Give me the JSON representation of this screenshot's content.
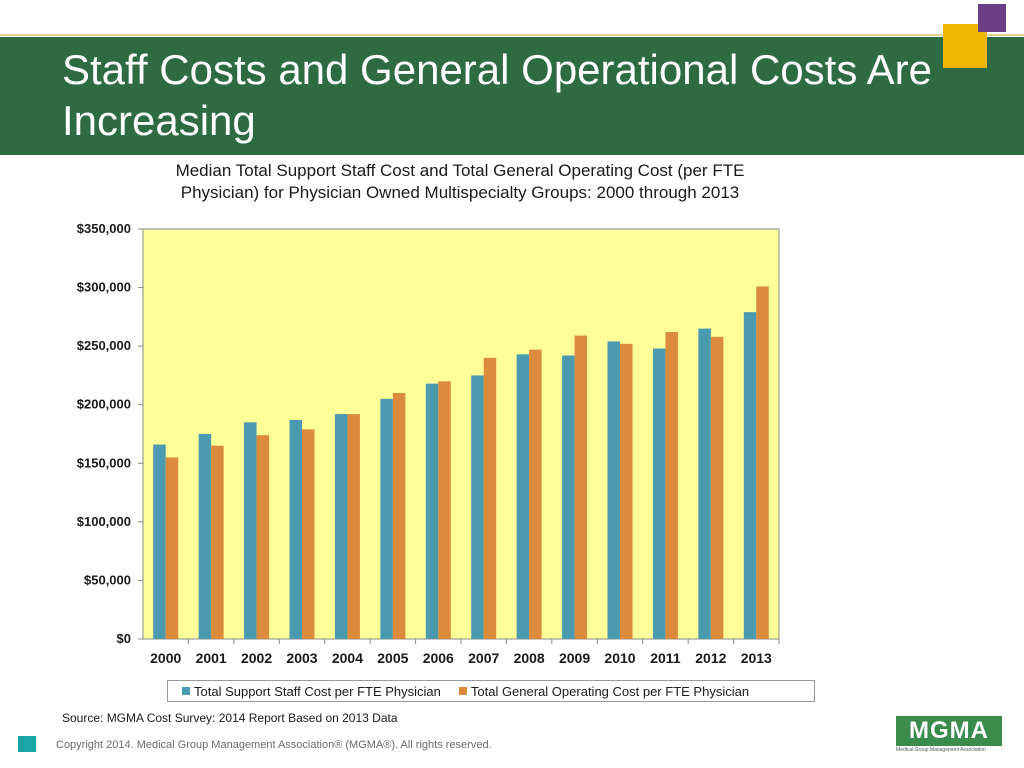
{
  "slide": {
    "title": "Staff Costs and General Operational Costs Are Increasing",
    "source": "Source:  MGMA Cost Survey: 2014 Report Based on 2013 Data",
    "copyright": "Copyright 2014. Medical Group Management Association® (MGMA®). All rights reserved.",
    "logo": {
      "word": "MGMA",
      "subtitle": "Medical Group Management Association"
    },
    "colors": {
      "title_bar": "#2e6b43",
      "accent_yellow": "#f2b705",
      "accent_purple": "#6b3f86",
      "footer_square": "#19a6a6"
    }
  },
  "chart_data": {
    "type": "bar",
    "title_line1": "Median Total Support Staff Cost and Total General Operating Cost (per FTE",
    "title_line2": "Physician) for Physician Owned Multispecialty Groups: 2000 through 2013",
    "categories": [
      "2000",
      "2001",
      "2002",
      "2003",
      "2004",
      "2005",
      "2006",
      "2007",
      "2008",
      "2009",
      "2010",
      "2011",
      "2012",
      "2013"
    ],
    "series": [
      {
        "name": "Total Support Staff Cost per FTE Physician",
        "color": "#4a9bb0",
        "values": [
          166000,
          175000,
          185000,
          187000,
          192000,
          205000,
          218000,
          225000,
          243000,
          242000,
          254000,
          248000,
          265000,
          279000
        ]
      },
      {
        "name": "Total General Operating Cost per FTE Physician",
        "color": "#dc8a3c",
        "values": [
          155000,
          165000,
          174000,
          179000,
          192000,
          210000,
          220000,
          240000,
          247000,
          259000,
          252000,
          262000,
          258000,
          301000
        ]
      }
    ],
    "ylim": [
      0,
      350000
    ],
    "yticks": [
      "$0",
      "$50,000",
      "$100,000",
      "$150,000",
      "$200,000",
      "$250,000",
      "$300,000",
      "$350,000"
    ],
    "plot_background": "#ffff99",
    "grid": false,
    "legend_position": "bottom"
  }
}
